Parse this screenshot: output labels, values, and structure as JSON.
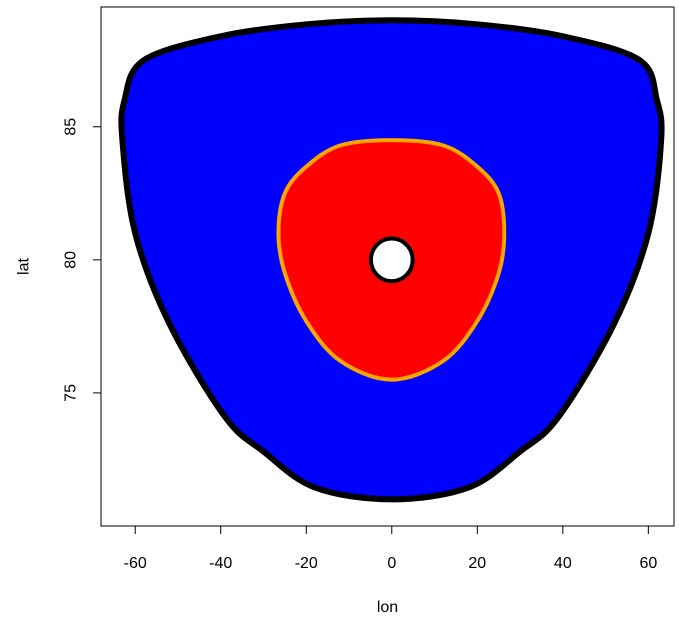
{
  "chart_data": {
    "type": "area",
    "title": "",
    "xlabel": "lon",
    "ylabel": "lat",
    "xlim": [
      -68,
      66
    ],
    "ylim": [
      70,
      89.5
    ],
    "x_ticks": [
      -60,
      -40,
      -20,
      0,
      20,
      40,
      60
    ],
    "y_ticks": [
      75,
      80,
      85
    ],
    "grid": false,
    "legend": "none",
    "colors": {
      "outer_fill": "#0000FF",
      "outer_border": "#000000",
      "middle_fill": "#FF0000",
      "middle_border": "#FFA500",
      "inner_fill": "#FFFFFF",
      "inner_border": "#000000",
      "axis": "#000000"
    },
    "regions": [
      {
        "fill": "#0000FF",
        "border": "#000000",
        "lon": [
          -18,
          0,
          18,
          30,
          39,
          52,
          60,
          63,
          62,
          58,
          40,
          20,
          0,
          -20,
          -40,
          -58,
          -62.5,
          -63,
          -60,
          -52,
          -39,
          -30
        ],
        "lat": [
          71.45,
          71.0,
          71.45,
          72.8,
          74.1,
          77.6,
          81.0,
          84.5,
          86.0,
          87.5,
          88.4,
          88.85,
          89.0,
          88.85,
          88.4,
          87.5,
          86.0,
          84.5,
          81.0,
          77.6,
          74.1,
          72.8
        ]
      },
      {
        "fill": "#FF0000",
        "border": "#FFA500",
        "lon": [
          0,
          12,
          20,
          25,
          26.3,
          25,
          20,
          12,
          0,
          -12,
          -20,
          -25,
          -26.5,
          -25,
          -20,
          -12
        ],
        "lat": [
          75.5,
          76.2,
          77.7,
          79.5,
          81.0,
          82.5,
          83.5,
          84.3,
          84.5,
          84.3,
          83.5,
          82.5,
          81.0,
          79.5,
          77.7,
          76.2
        ]
      },
      {
        "fill": "#FFFFFF",
        "border": "#000000",
        "shape": "circle",
        "center": [
          0,
          80
        ],
        "radius_lat": 0.8
      }
    ]
  }
}
